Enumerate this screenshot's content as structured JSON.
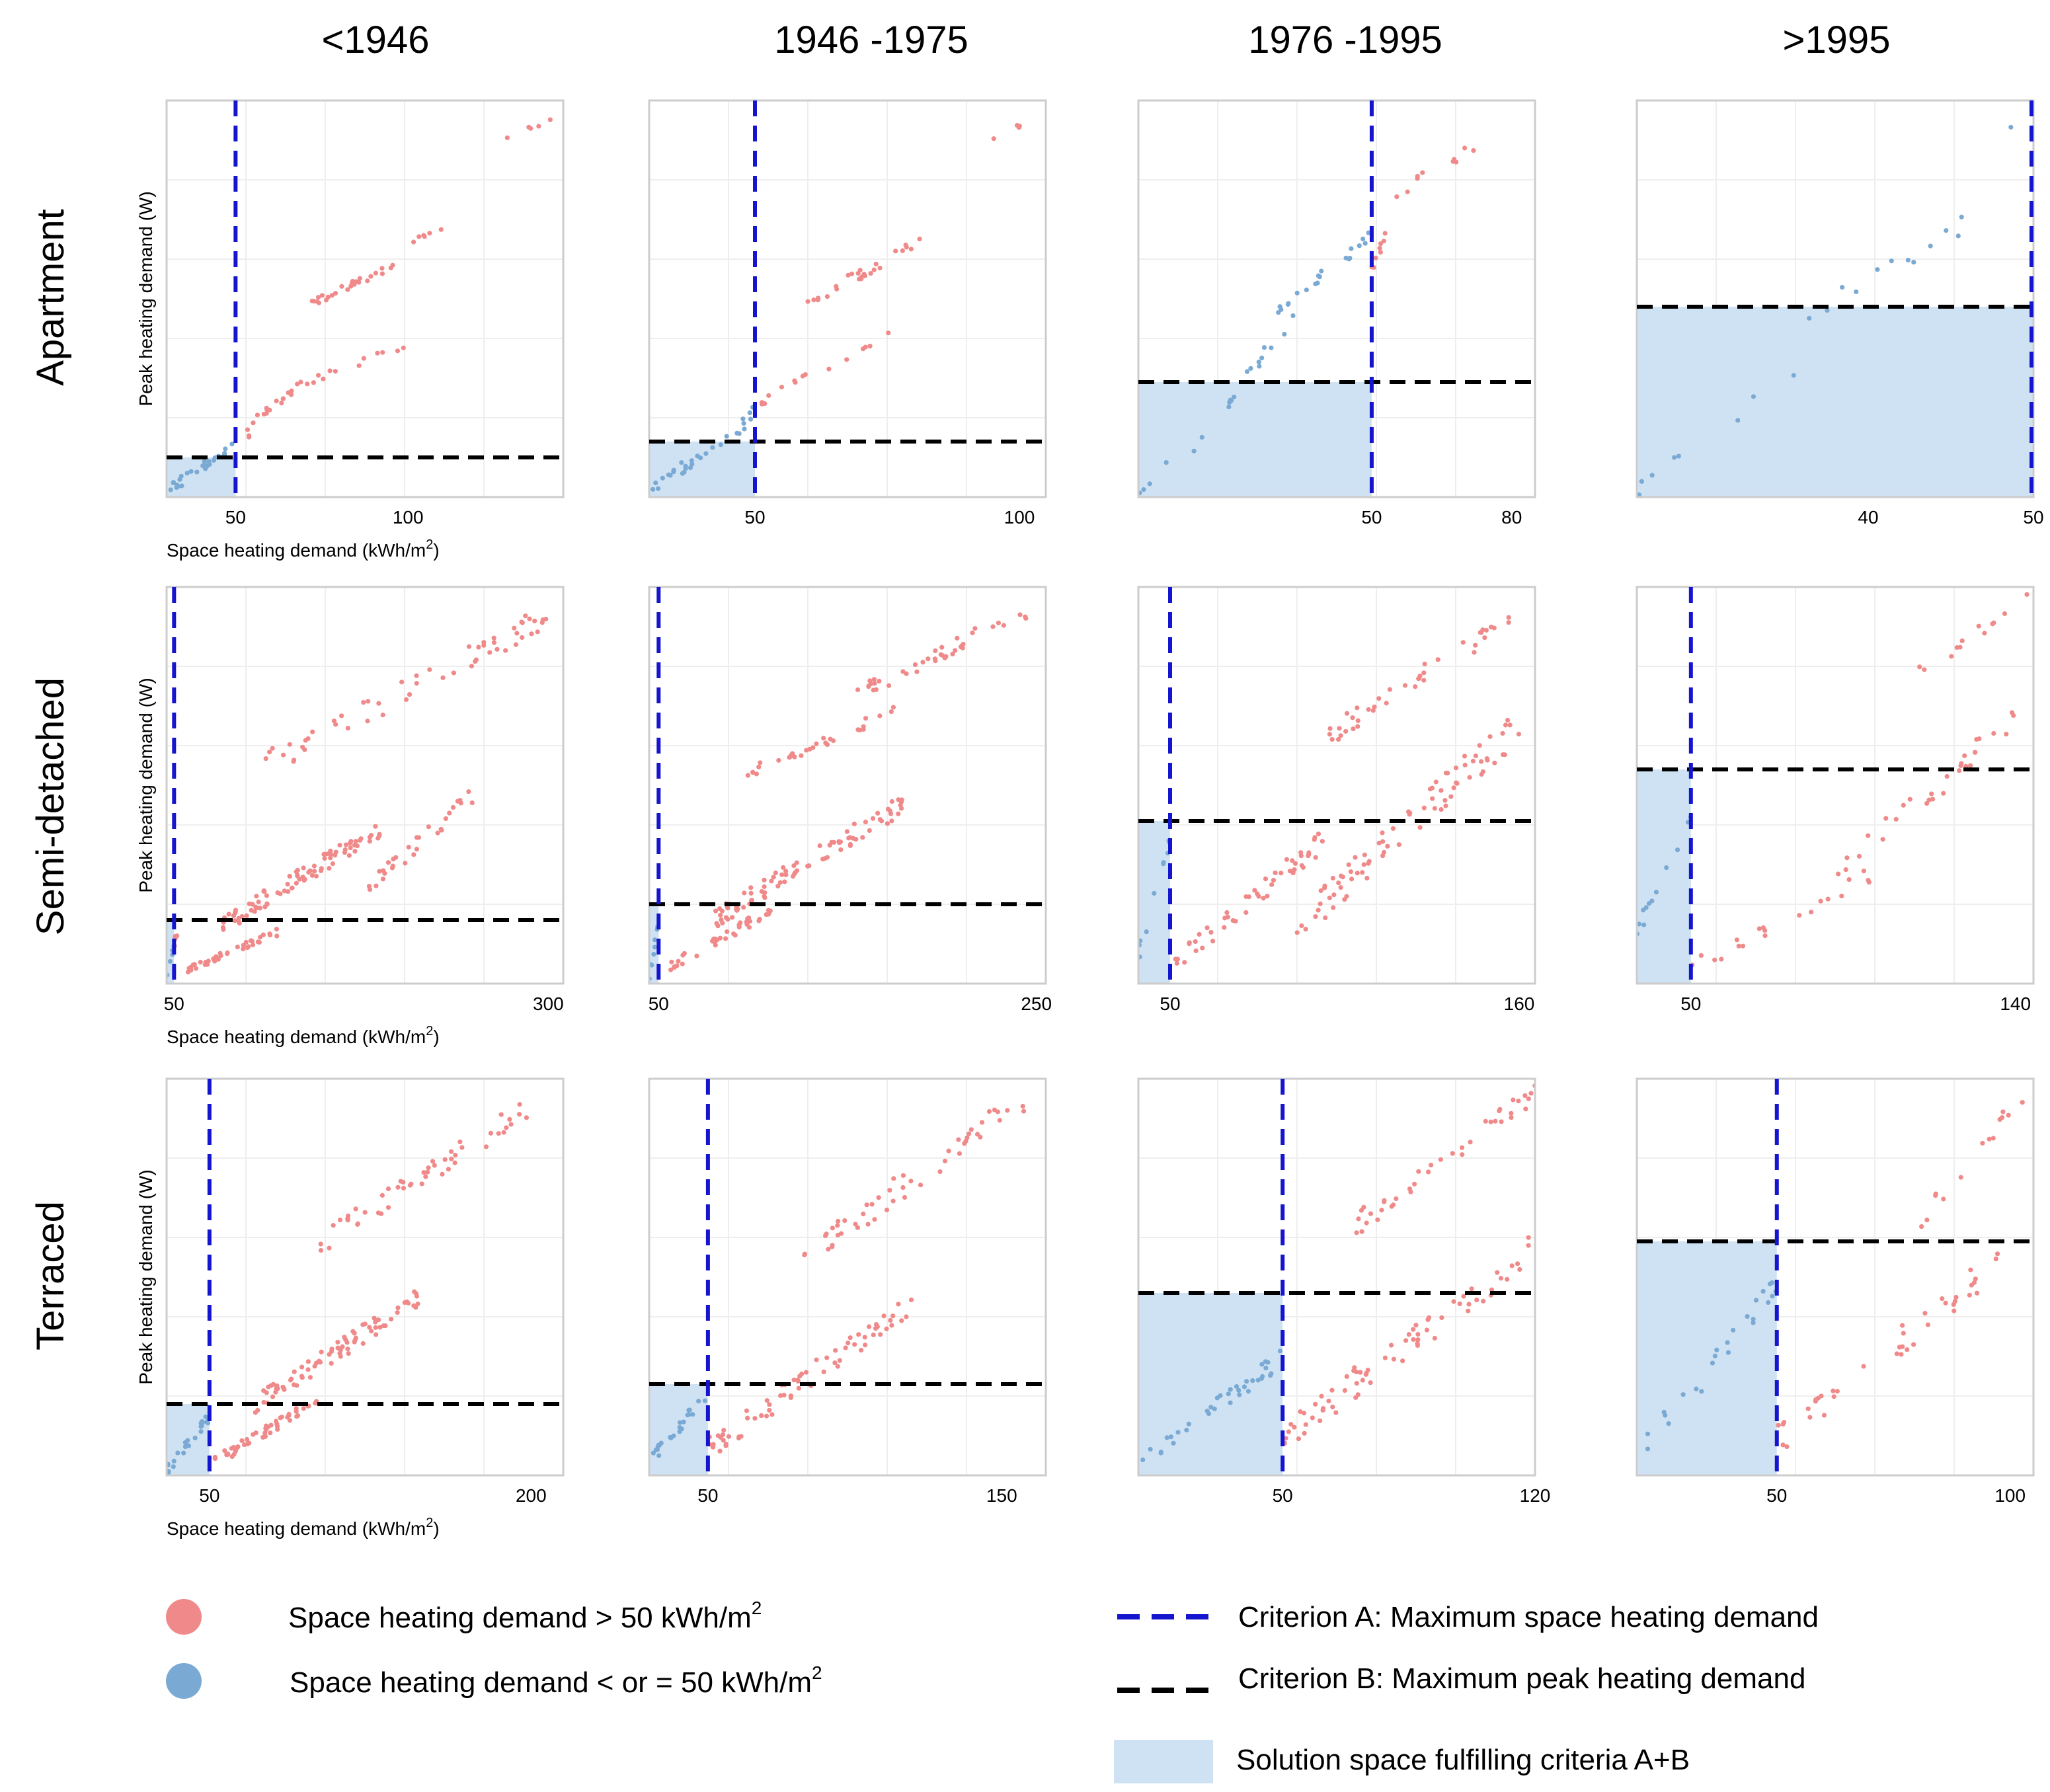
{
  "column_titles": [
    "<1946",
    "1946 -1975",
    "1976 -1995",
    ">1995"
  ],
  "row_titles": [
    "Apartment",
    "Semi-detached",
    "Terraced"
  ],
  "axis_labels": {
    "ylabel": "Peak heating demand (W)",
    "xlabel_prefix": "Space heating demand (kWh/m",
    "xlabel_sup": "2",
    "xlabel_suffix": ")"
  },
  "legend": {
    "red_label": "Space heating demand > 50 kWh/m",
    "red_sup": "2",
    "blue_label": "Space heating demand < or = 50 kWh/m",
    "blue_sup": "2",
    "criterion_a": "Criterion A: Maximum space heating demand",
    "criterion_b": "Criterion B: Maximum peak heating demand",
    "solution": "Solution space fulfilling criteria A+B"
  },
  "colors": {
    "red": "#f08a8a",
    "blue": "#7aaad4",
    "criterion_a": "#1515d0",
    "criterion_b": "#000000",
    "solution": "#cfe2f3",
    "frame": "#cccccc",
    "grid": "#eeeeee"
  },
  "chart_data": [
    {
      "type": "scatter",
      "row": "Apartment",
      "period": "<1946",
      "xlim": [
        30,
        145
      ],
      "ylim": [
        0,
        100
      ],
      "xticks": [
        50,
        100
      ],
      "criterion_a": 50,
      "criterion_b": 10,
      "bands": [
        {
          "x0": 30,
          "x1": 55,
          "y0": 0,
          "y1": 18,
          "n": 34
        },
        {
          "x0": 55,
          "x1": 70,
          "y0": 18,
          "y1": 30,
          "n": 16
        },
        {
          "x0": 70,
          "x1": 102,
          "y0": 28,
          "y1": 40,
          "n": 12
        },
        {
          "x0": 72,
          "x1": 98,
          "y0": 48,
          "y1": 60,
          "n": 26
        },
        {
          "x0": 95,
          "x1": 110,
          "y0": 62,
          "y1": 68,
          "n": 6
        },
        {
          "x0": 128,
          "x1": 143,
          "y0": 90,
          "y1": 96,
          "n": 5
        }
      ]
    },
    {
      "type": "scatter",
      "row": "Apartment",
      "period": "1946 -1975",
      "xlim": [
        30,
        105
      ],
      "ylim": [
        0,
        100
      ],
      "xticks": [
        50,
        100
      ],
      "criterion_a": 50,
      "criterion_b": 14,
      "bands": [
        {
          "x0": 30,
          "x1": 50,
          "y0": 0,
          "y1": 22,
          "n": 28
        },
        {
          "x0": 48,
          "x1": 60,
          "y0": 20,
          "y1": 32,
          "n": 12
        },
        {
          "x0": 62,
          "x1": 78,
          "y0": 30,
          "y1": 44,
          "n": 6
        },
        {
          "x0": 60,
          "x1": 82,
          "y0": 48,
          "y1": 66,
          "n": 26
        },
        {
          "x0": 95,
          "x1": 103,
          "y0": 90,
          "y1": 96,
          "n": 4
        }
      ]
    },
    {
      "type": "scatter",
      "row": "Apartment",
      "period": "1976 -1995",
      "xlim": [
        0,
        85
      ],
      "ylim": [
        0,
        100
      ],
      "xticks": [
        50,
        80
      ],
      "criterion_a": 50,
      "criterion_b": 29,
      "bands": [
        {
          "x0": 0,
          "x1": 20,
          "y0": 0,
          "y1": 22,
          "n": 6
        },
        {
          "x0": 18,
          "x1": 35,
          "y0": 20,
          "y1": 50,
          "n": 14
        },
        {
          "x0": 30,
          "x1": 50,
          "y0": 45,
          "y1": 68,
          "n": 20
        },
        {
          "x0": 50,
          "x1": 55,
          "y0": 55,
          "y1": 75,
          "n": 8
        },
        {
          "x0": 55,
          "x1": 75,
          "y0": 75,
          "y1": 92,
          "n": 10
        }
      ]
    },
    {
      "type": "scatter",
      "row": "Apartment",
      "period": ">1995",
      "xlim": [
        26,
        50
      ],
      "ylim": [
        0,
        100
      ],
      "xticks": [
        40,
        50
      ],
      "criterion_a": 50,
      "criterion_b": 48,
      "bands": [
        {
          "x0": 26,
          "x1": 36,
          "y0": 0,
          "y1": 36,
          "n": 8
        },
        {
          "x0": 35,
          "x1": 46,
          "y0": 40,
          "y1": 72,
          "n": 12
        },
        {
          "x0": 48,
          "x1": 50,
          "y0": 92,
          "y1": 96,
          "n": 1
        }
      ]
    },
    {
      "type": "scatter",
      "row": "Semi-detached",
      "period": "<1946",
      "xlim": [
        45,
        310
      ],
      "ylim": [
        0,
        100
      ],
      "xticks": [
        50,
        300
      ],
      "criterion_a": 50,
      "criterion_b": 16,
      "bands": [
        {
          "x0": 45,
          "x1": 52,
          "y0": 0,
          "y1": 14,
          "n": 10
        },
        {
          "x0": 55,
          "x1": 120,
          "y0": 2,
          "y1": 14,
          "n": 40
        },
        {
          "x0": 80,
          "x1": 190,
          "y0": 12,
          "y1": 42,
          "n": 90
        },
        {
          "x0": 180,
          "x1": 250,
          "y0": 22,
          "y1": 50,
          "n": 30
        },
        {
          "x0": 110,
          "x1": 300,
          "y0": 52,
          "y1": 96,
          "n": 55
        }
      ]
    },
    {
      "type": "scatter",
      "row": "Semi-detached",
      "period": "1946 -1975",
      "xlim": [
        45,
        255
      ],
      "ylim": [
        0,
        100
      ],
      "xticks": [
        50,
        250
      ],
      "criterion_a": 50,
      "criterion_b": 20,
      "bands": [
        {
          "x0": 45,
          "x1": 50,
          "y0": 0,
          "y1": 18,
          "n": 8
        },
        {
          "x0": 52,
          "x1": 110,
          "y0": 2,
          "y1": 20,
          "n": 40
        },
        {
          "x0": 80,
          "x1": 180,
          "y0": 14,
          "y1": 48,
          "n": 90
        },
        {
          "x0": 90,
          "x1": 175,
          "y0": 50,
          "y1": 70,
          "n": 30
        },
        {
          "x0": 150,
          "x1": 245,
          "y0": 70,
          "y1": 96,
          "n": 40
        }
      ]
    },
    {
      "type": "scatter",
      "row": "Semi-detached",
      "period": "1976 -1995",
      "xlim": [
        40,
        165
      ],
      "ylim": [
        0,
        100
      ],
      "xticks": [
        50,
        160
      ],
      "criterion_a": 50,
      "criterion_b": 41,
      "bands": [
        {
          "x0": 40,
          "x1": 50,
          "y0": 5,
          "y1": 40,
          "n": 10
        },
        {
          "x0": 50,
          "x1": 100,
          "y0": 2,
          "y1": 40,
          "n": 50
        },
        {
          "x0": 90,
          "x1": 160,
          "y0": 10,
          "y1": 70,
          "n": 80
        },
        {
          "x0": 100,
          "x1": 160,
          "y0": 60,
          "y1": 96,
          "n": 40
        }
      ]
    },
    {
      "type": "scatter",
      "row": "Semi-detached",
      "period": ">1995",
      "xlim": [
        35,
        145
      ],
      "ylim": [
        0,
        100
      ],
      "xticks": [
        50,
        140
      ],
      "criterion_a": 50,
      "criterion_b": 54,
      "bands": [
        {
          "x0": 35,
          "x1": 50,
          "y0": 10,
          "y1": 46,
          "n": 12
        },
        {
          "x0": 50,
          "x1": 100,
          "y0": 2,
          "y1": 30,
          "n": 20
        },
        {
          "x0": 90,
          "x1": 140,
          "y0": 25,
          "y1": 70,
          "n": 30
        },
        {
          "x0": 110,
          "x1": 145,
          "y0": 75,
          "y1": 100,
          "n": 12
        }
      ]
    },
    {
      "type": "scatter",
      "row": "Terraced",
      "period": "<1946",
      "xlim": [
        30,
        215
      ],
      "ylim": [
        0,
        100
      ],
      "xticks": [
        50,
        200
      ],
      "criterion_a": 50,
      "criterion_b": 18,
      "bands": [
        {
          "x0": 30,
          "x1": 50,
          "y0": 0,
          "y1": 16,
          "n": 24
        },
        {
          "x0": 52,
          "x1": 100,
          "y0": 2,
          "y1": 20,
          "n": 50
        },
        {
          "x0": 70,
          "x1": 150,
          "y0": 15,
          "y1": 48,
          "n": 80
        },
        {
          "x0": 100,
          "x1": 200,
          "y0": 55,
          "y1": 96,
          "n": 50
        }
      ]
    },
    {
      "type": "scatter",
      "row": "Terraced",
      "period": "1946 -1975",
      "xlim": [
        30,
        165
      ],
      "ylim": [
        0,
        100
      ],
      "xticks": [
        50,
        150
      ],
      "criterion_a": 50,
      "criterion_b": 23,
      "bands": [
        {
          "x0": 30,
          "x1": 50,
          "y0": 2,
          "y1": 22,
          "n": 24
        },
        {
          "x0": 50,
          "x1": 120,
          "y0": 4,
          "y1": 46,
          "n": 70
        },
        {
          "x0": 80,
          "x1": 160,
          "y0": 50,
          "y1": 100,
          "n": 50
        }
      ]
    },
    {
      "type": "scatter",
      "row": "Terraced",
      "period": "1976 -1995",
      "xlim": [
        10,
        120
      ],
      "ylim": [
        0,
        100
      ],
      "xticks": [
        50,
        120
      ],
      "criterion_a": 50,
      "criterion_b": 46,
      "bands": [
        {
          "x0": 10,
          "x1": 50,
          "y0": 0,
          "y1": 32,
          "n": 36
        },
        {
          "x0": 50,
          "x1": 120,
          "y0": 5,
          "y1": 62,
          "n": 70
        },
        {
          "x0": 70,
          "x1": 120,
          "y0": 60,
          "y1": 100,
          "n": 40
        }
      ]
    },
    {
      "type": "scatter",
      "row": "Terraced",
      "period": ">1995",
      "xlim": [
        20,
        105
      ],
      "ylim": [
        0,
        100
      ],
      "xticks": [
        50,
        100
      ],
      "criterion_a": 50,
      "criterion_b": 59,
      "bands": [
        {
          "x0": 20,
          "x1": 50,
          "y0": 0,
          "y1": 52,
          "n": 24
        },
        {
          "x0": 50,
          "x1": 100,
          "y0": 5,
          "y1": 60,
          "n": 40
        },
        {
          "x0": 80,
          "x1": 103,
          "y0": 60,
          "y1": 100,
          "n": 14
        }
      ]
    }
  ]
}
